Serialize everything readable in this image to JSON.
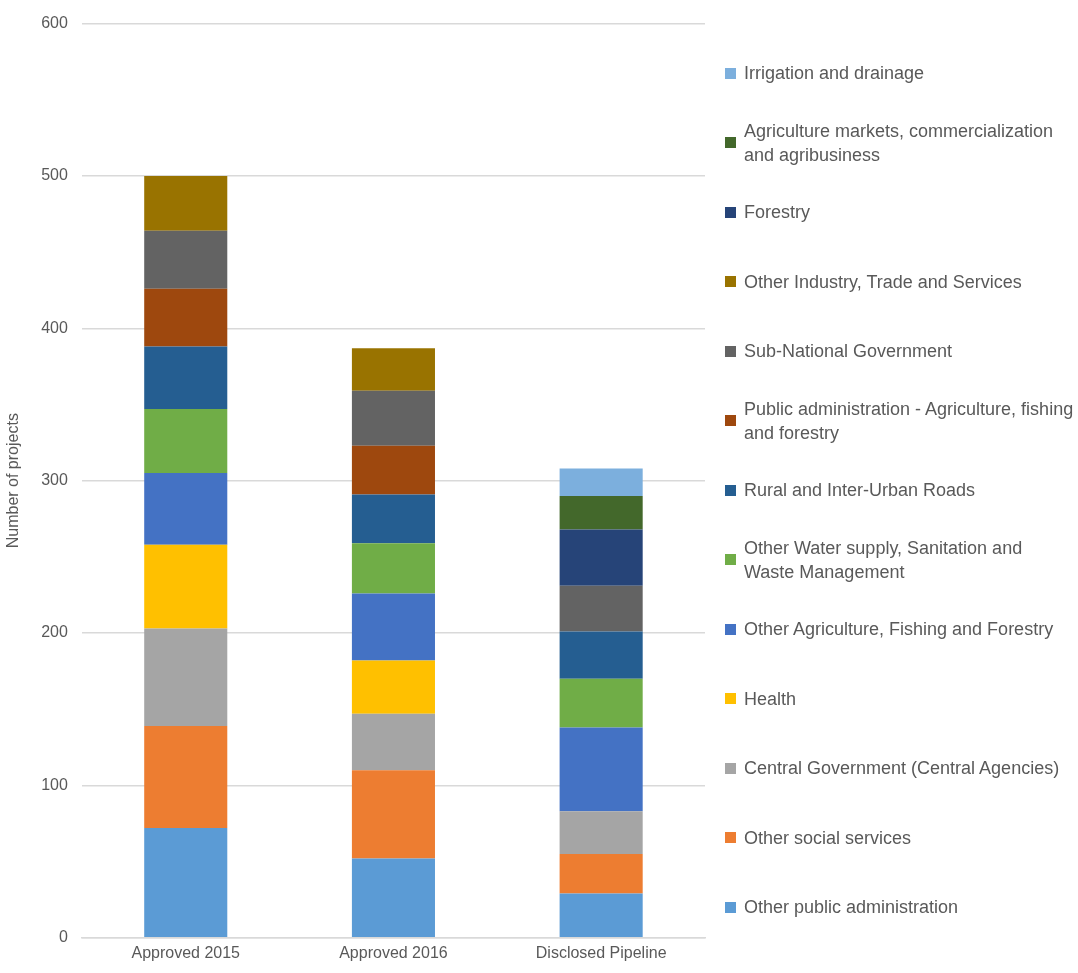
{
  "chart_data": {
    "type": "bar",
    "stacked": true,
    "ylabel": "Number of projects",
    "categories": [
      "Approved 2015",
      "Approved 2016",
      "Disclosed Pipeline"
    ],
    "ylim": [
      0,
      600
    ],
    "yticks": [
      0,
      100,
      200,
      300,
      400,
      500,
      600
    ],
    "grid": "y",
    "legend": "right",
    "series": [
      {
        "name": "Other public administration",
        "color": "#5b9bd5",
        "values": [
          72,
          52,
          29
        ]
      },
      {
        "name": "Other social services",
        "color": "#ed7d31",
        "values": [
          67,
          58,
          26
        ]
      },
      {
        "name": "Central Government (Central Agencies)",
        "color": "#a5a5a5",
        "values": [
          64,
          37,
          28
        ]
      },
      {
        "name": "Health",
        "color": "#ffc000",
        "values": [
          55,
          35,
          null
        ]
      },
      {
        "name": "Other Agriculture, Fishing and Forestry",
        "color": "#4472c4",
        "values": [
          47,
          44,
          55
        ]
      },
      {
        "name": "Other Water supply, Sanitation and Waste Management",
        "color": "#70ad47",
        "values": [
          42,
          33,
          32
        ]
      },
      {
        "name": "Rural and Inter-Urban Roads",
        "color": "#255e91",
        "values": [
          41,
          32,
          31
        ]
      },
      {
        "name": "Public administration - Agriculture, fishing and forestry",
        "color": "#9e480e",
        "values": [
          38,
          32,
          null
        ]
      },
      {
        "name": "Sub-National Government",
        "color": "#636363",
        "values": [
          38,
          36,
          30
        ]
      },
      {
        "name": "Other Industry, Trade and Services",
        "color": "#997300",
        "values": [
          36,
          28,
          null
        ]
      },
      {
        "name": "Forestry",
        "color": "#264478",
        "values": [
          null,
          null,
          37
        ]
      },
      {
        "name": "Agriculture markets, commercialization and agribusiness",
        "color": "#43682b",
        "values": [
          null,
          null,
          22
        ]
      },
      {
        "name": "Irrigation and drainage",
        "color": "#7cafdd",
        "values": [
          null,
          null,
          18
        ]
      }
    ]
  }
}
